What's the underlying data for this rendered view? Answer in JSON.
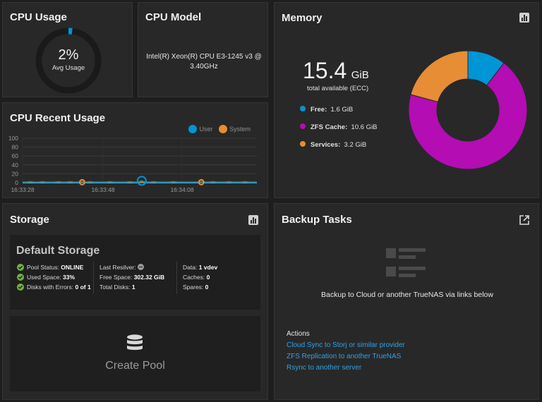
{
  "cpu_usage": {
    "title": "CPU Usage",
    "percent_label": "2%",
    "percent": 2,
    "sublabel": "Avg Usage",
    "accent": "#0095d5"
  },
  "cpu_model": {
    "title": "CPU Model",
    "model": "Intel(R) Xeon(R) CPU E3-1245 v3 @ 3.40GHz"
  },
  "cpu_recent": {
    "title": "CPU Recent Usage",
    "legend": [
      {
        "name": "User",
        "color": "#0095d5"
      },
      {
        "name": "System",
        "color": "#e68d36"
      }
    ],
    "chart_data": {
      "type": "line",
      "title": "CPU Recent Usage",
      "ylim": [
        0,
        100
      ],
      "y_ticks": [
        "100",
        "80",
        "60",
        "40",
        "20",
        "0"
      ],
      "x_ticks": [
        "16:33:28",
        "16:33:48",
        "16:34:08"
      ],
      "grid": true,
      "legend_position": "top-right",
      "series": [
        {
          "name": "User",
          "color": "#0095d5",
          "values": [
            1,
            1,
            2,
            1,
            1,
            2,
            1,
            1,
            1,
            2,
            1,
            1,
            2,
            1,
            1,
            2,
            1,
            2,
            1,
            1,
            1,
            1,
            2,
            1,
            1,
            1,
            1,
            2,
            1,
            1,
            4,
            1,
            1,
            2,
            1,
            1,
            1,
            1,
            2,
            1,
            1,
            1,
            1,
            1,
            1,
            2,
            1,
            1,
            2,
            1,
            1,
            1,
            2,
            1,
            1,
            1,
            2,
            1,
            1,
            1
          ]
        },
        {
          "name": "System",
          "color": "#e68d36",
          "values": [
            0,
            0,
            0,
            0,
            0,
            0,
            0,
            0,
            0,
            0,
            0,
            0,
            0,
            0,
            0,
            1,
            0,
            0,
            0,
            0,
            0,
            0,
            0,
            0,
            0,
            0,
            0,
            0,
            0,
            0,
            1,
            0,
            0,
            0,
            0,
            0,
            0,
            0,
            0,
            0,
            0,
            0,
            0,
            0,
            0,
            1,
            0,
            0,
            0,
            0,
            0,
            0,
            0,
            0,
            0,
            0,
            0,
            0,
            0,
            0
          ]
        }
      ]
    }
  },
  "memory": {
    "title": "Memory",
    "total_value": "15.4",
    "total_unit": "GiB",
    "total_label": "total available (ECC)",
    "items": [
      {
        "label": "Free:",
        "value": "1.6 GiB",
        "color": "#0095d5"
      },
      {
        "label": "ZFS Cache:",
        "value": "10.6 GiB",
        "color": "#b30db3"
      },
      {
        "label": "Services:",
        "value": "3.2 GiB",
        "color": "#e68d36"
      }
    ],
    "chart_data": {
      "type": "pie",
      "categories": [
        "Free",
        "ZFS Cache",
        "Services"
      ],
      "values": [
        1.6,
        10.6,
        3.2
      ],
      "colors": [
        "#0095d5",
        "#b30db3",
        "#e68d36"
      ]
    },
    "icon": "bar-chart-icon"
  },
  "storage": {
    "title": "Storage",
    "icon": "bar-chart-icon",
    "pool_name": "Default Storage",
    "col1": [
      {
        "label": "Pool Status:",
        "value": "ONLINE"
      },
      {
        "label": "Used Space:",
        "value": "33%"
      },
      {
        "label": "Disks with Errors:",
        "value": "0 of 1"
      }
    ],
    "col2": [
      {
        "label": "Last Resilver:",
        "value": ""
      },
      {
        "label": "Free Space:",
        "value": "302.32 GiB"
      },
      {
        "label": "Total Disks:",
        "value": "1"
      }
    ],
    "col3": [
      {
        "label": "Data:",
        "value": "1 vdev"
      },
      {
        "label": "Caches:",
        "value": "0"
      },
      {
        "label": "Spares:",
        "value": "0"
      }
    ],
    "create_pool_label": "Create Pool"
  },
  "backup": {
    "title": "Backup Tasks",
    "icon": "open-in-new-icon",
    "empty_message": "Backup to Cloud or another TrueNAS via links below",
    "actions_title": "Actions",
    "links": [
      "Cloud Sync to Storj or similar provider",
      "ZFS Replication to another TrueNAS",
      "Rsync to another server"
    ]
  }
}
